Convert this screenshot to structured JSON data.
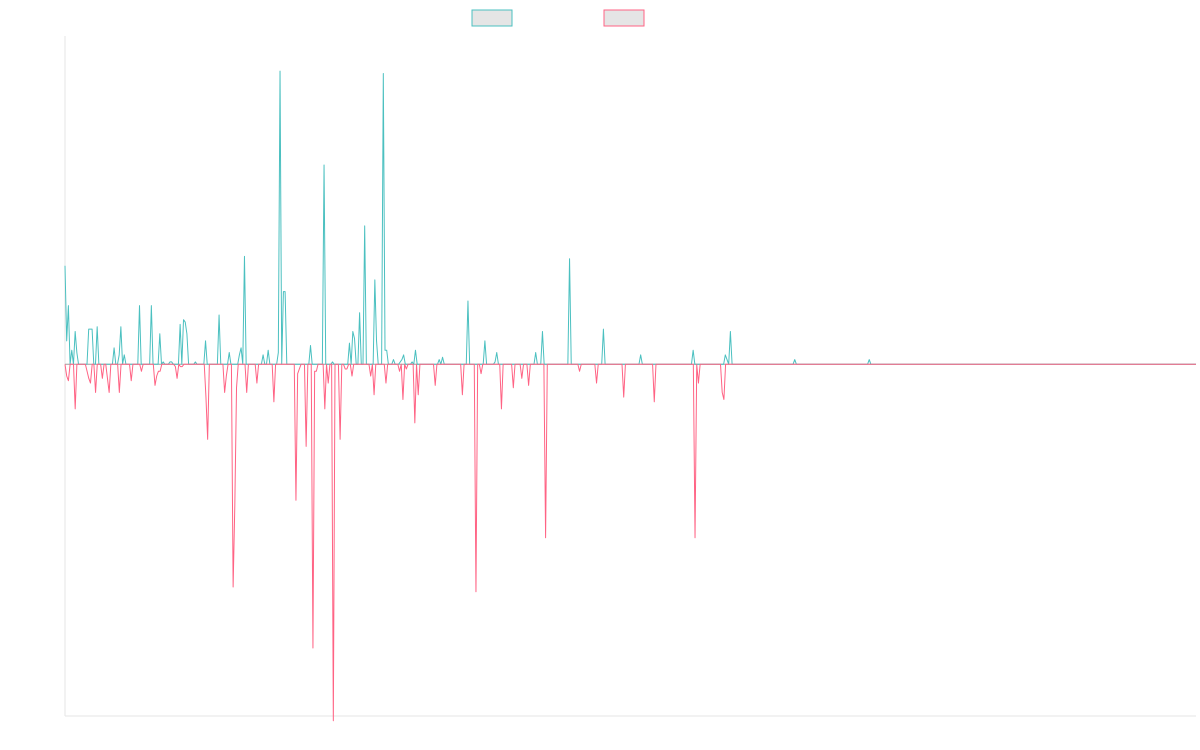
{
  "chart_data": {
    "type": "line",
    "title": "",
    "xlabel": "",
    "ylabel": "",
    "ylim": [
      -150,
      140
    ],
    "grid": false,
    "legend_position": "top-center",
    "colors": {
      "positive": "#4bc0c0",
      "negative": "#ff6384",
      "legend_fill": "#e5e5e5",
      "axis": "#e6e6e6",
      "baseline": "#9e9e9e"
    },
    "series": [
      {
        "values": [
          42,
          10,
          25,
          0,
          6,
          0,
          14,
          5,
          0,
          0,
          0,
          0,
          0,
          0,
          15,
          15,
          15,
          0,
          0,
          16,
          0,
          0,
          0,
          0,
          0,
          0,
          0,
          0,
          0,
          7,
          0,
          0,
          4,
          16,
          0,
          4,
          0,
          0,
          0,
          0,
          0,
          0,
          0,
          0,
          25,
          0,
          0,
          0,
          0,
          0,
          0,
          25,
          0,
          0,
          0,
          0,
          13,
          0,
          1,
          0,
          0,
          0,
          1,
          1,
          0,
          0,
          0,
          0,
          17,
          0,
          19,
          18,
          13,
          0,
          0,
          0,
          0,
          1,
          0,
          0,
          0,
          0,
          0,
          10,
          0,
          0,
          0,
          0,
          0,
          0,
          0,
          21,
          0,
          0,
          0,
          0,
          0,
          5,
          0,
          0,
          0,
          0,
          0,
          4,
          7,
          0,
          46,
          0,
          0,
          0,
          0,
          0,
          0,
          0,
          0,
          0,
          0,
          4,
          0,
          0,
          6,
          0,
          0,
          0,
          0,
          0,
          5,
          125,
          0,
          31,
          31,
          0,
          0,
          0,
          0,
          0,
          0,
          0,
          0,
          0,
          0,
          0,
          0,
          0,
          0,
          8,
          0,
          0,
          0,
          0,
          0,
          0,
          0,
          85,
          0,
          0,
          0,
          0,
          1,
          0,
          0,
          0,
          0,
          0,
          0,
          0,
          0,
          0,
          9,
          0,
          14,
          11,
          0,
          0,
          22,
          0,
          0,
          59,
          0,
          0,
          0,
          0,
          0,
          36,
          10,
          0,
          0,
          0,
          124,
          6,
          6,
          0,
          0,
          0,
          2,
          0,
          0,
          0,
          1,
          2,
          4,
          0,
          0,
          0,
          0,
          1,
          0,
          6,
          0,
          0,
          0,
          0,
          0,
          0,
          0,
          0,
          0,
          0,
          0,
          0,
          0,
          2,
          0,
          3,
          0,
          0,
          0,
          0,
          0,
          0,
          0,
          0,
          0,
          0,
          0,
          0,
          0,
          0,
          27,
          0,
          0,
          0,
          0,
          0,
          0,
          0,
          0,
          0,
          10,
          0,
          0,
          0,
          0,
          0,
          1,
          5,
          0,
          0,
          0,
          0,
          0,
          0,
          0,
          0,
          0,
          0,
          0,
          0,
          0,
          0,
          0,
          0,
          0,
          0,
          0,
          0,
          0,
          0,
          5,
          0,
          0,
          0,
          14,
          0,
          0,
          0,
          0,
          0,
          0,
          0,
          0,
          0,
          0,
          0,
          0,
          0,
          0,
          0,
          45,
          0,
          0,
          0,
          0,
          0,
          0,
          0,
          0,
          0,
          0,
          0,
          0,
          0,
          0,
          0,
          0,
          0,
          0,
          0,
          15,
          0,
          0,
          0,
          0,
          0,
          0,
          0,
          0,
          0,
          0,
          0,
          0,
          0,
          0,
          0,
          0,
          0,
          0,
          0,
          0,
          0,
          4,
          0,
          0,
          0,
          0,
          0,
          0,
          0,
          0,
          0,
          0,
          0,
          0,
          0,
          0,
          0,
          0,
          0,
          0,
          0,
          0,
          0,
          0,
          0,
          0,
          0,
          0,
          0,
          0,
          0,
          0,
          6,
          0,
          0,
          0,
          0,
          0,
          0,
          0,
          0,
          0,
          0,
          0,
          0,
          0,
          0,
          0,
          0,
          0,
          0,
          4,
          2,
          0,
          14,
          0,
          0,
          0,
          0,
          0,
          0,
          0,
          0,
          0,
          0,
          0,
          0,
          0,
          0,
          0,
          0,
          0,
          0,
          0,
          0,
          0,
          0,
          0,
          0,
          0,
          0,
          0,
          0,
          0,
          0,
          0,
          0,
          0,
          0,
          0,
          0,
          0,
          2,
          0,
          0,
          0,
          0,
          0,
          0,
          0,
          0,
          0,
          0,
          0,
          0,
          0,
          0,
          0,
          0,
          0,
          0,
          0,
          0,
          0,
          0,
          0,
          0,
          0,
          0,
          0,
          0,
          0,
          0,
          0,
          0,
          0,
          0,
          0,
          0,
          0,
          0,
          0,
          0,
          0,
          0,
          0,
          2,
          0,
          0,
          0,
          0,
          0,
          0,
          0,
          0,
          0,
          0,
          0,
          0,
          0,
          0,
          0,
          0,
          0,
          0,
          0,
          0,
          0,
          0,
          0,
          0,
          0,
          0,
          0,
          0,
          0,
          0,
          0,
          0,
          0,
          0,
          0,
          0,
          0,
          0,
          0,
          0,
          0,
          0,
          0,
          0,
          0,
          0,
          0,
          0,
          0,
          0,
          0,
          0,
          0,
          0,
          0,
          0,
          0,
          0,
          0,
          0,
          0,
          0,
          0,
          0,
          0,
          0,
          0,
          0,
          0,
          0,
          0,
          0,
          0,
          0,
          0,
          0,
          0,
          0,
          0,
          0,
          0,
          0,
          0,
          0,
          0,
          0,
          0,
          0,
          0,
          0,
          0,
          0,
          0,
          0,
          0,
          0,
          0,
          0,
          0,
          0,
          0,
          0,
          0,
          0,
          0,
          0,
          0,
          0,
          0,
          0,
          0,
          0,
          0,
          0,
          0,
          0,
          0,
          0,
          0,
          0,
          0,
          0,
          0,
          0,
          0,
          0,
          0,
          0,
          0,
          0,
          0,
          0,
          0,
          0,
          0,
          0,
          0,
          0,
          0,
          0,
          0,
          0,
          0,
          0,
          0,
          0,
          0,
          0,
          0,
          0,
          0,
          0,
          0,
          0,
          0,
          0,
          0,
          0,
          0,
          0,
          0,
          0,
          0,
          0,
          0,
          0,
          0,
          0,
          0,
          0,
          0,
          0,
          0,
          0,
          0,
          0,
          0,
          0,
          0,
          0,
          0,
          0,
          0,
          0,
          0,
          0,
          0,
          0,
          0,
          0,
          0,
          0,
          0
        ]
      },
      {
        "values": [
          0,
          -5,
          -7,
          0,
          0,
          0,
          -19,
          0,
          0,
          0,
          0,
          0,
          0,
          -3,
          -6,
          -8,
          0,
          0,
          -12,
          0,
          0,
          0,
          -6,
          0,
          0,
          -6,
          -12,
          0,
          0,
          0,
          0,
          0,
          -12,
          0,
          0,
          0,
          0,
          0,
          0,
          -7,
          0,
          0,
          0,
          0,
          0,
          -3,
          0,
          0,
          0,
          0,
          0,
          0,
          0,
          -9,
          -5,
          -3,
          -3,
          0,
          0,
          0,
          0,
          0,
          0,
          0,
          0,
          -1,
          -6,
          0,
          -1,
          -1,
          0,
          0,
          0,
          0,
          0,
          0,
          0,
          0,
          0,
          0,
          0,
          0,
          0,
          -14,
          -32,
          0,
          0,
          0,
          0,
          0,
          0,
          0,
          0,
          0,
          -12,
          -5,
          0,
          0,
          0,
          -95,
          -60,
          -10,
          0,
          0,
          0,
          0,
          0,
          -12,
          0,
          0,
          0,
          0,
          0,
          -8,
          0,
          0,
          0,
          0,
          0,
          0,
          0,
          0,
          0,
          -16,
          0,
          0,
          0,
          0,
          0,
          0,
          0,
          0,
          0,
          0,
          0,
          0,
          -58,
          -4,
          -2,
          0,
          0,
          0,
          -35,
          0,
          0,
          0,
          -121,
          -3,
          -3,
          0,
          0,
          0,
          0,
          -19,
          0,
          -8,
          0,
          0,
          -152,
          0,
          0,
          0,
          -32,
          0,
          0,
          -2,
          -2,
          0,
          0,
          -5,
          0,
          0,
          0,
          0,
          0,
          0,
          0,
          0,
          0,
          0,
          -5,
          0,
          -13,
          0,
          0,
          0,
          0,
          0,
          0,
          -8,
          0,
          0,
          0,
          0,
          0,
          0,
          0,
          -3,
          0,
          -15,
          0,
          -2,
          0,
          0,
          0,
          0,
          -25,
          0,
          -13,
          0,
          0,
          0,
          0,
          0,
          0,
          0,
          0,
          0,
          -9,
          0,
          0,
          0,
          0,
          0,
          0,
          0,
          0,
          0,
          0,
          0,
          0,
          0,
          0,
          0,
          -13,
          0,
          0,
          0,
          0,
          0,
          0,
          0,
          -97,
          0,
          0,
          -4,
          0,
          0,
          0,
          0,
          0,
          0,
          0,
          0,
          0,
          0,
          0,
          -19,
          0,
          0,
          0,
          0,
          0,
          0,
          -10,
          0,
          0,
          0,
          0,
          -6,
          0,
          0,
          0,
          -9,
          0,
          0,
          0,
          0,
          0,
          0,
          0,
          0,
          0,
          -74,
          0,
          0,
          0,
          0,
          0,
          0,
          0,
          0,
          0,
          0,
          0,
          0,
          0,
          0,
          0,
          0,
          0,
          0,
          0,
          -3,
          0,
          0,
          0,
          0,
          0,
          0,
          0,
          0,
          0,
          -8,
          0,
          0,
          0,
          0,
          0,
          0,
          0,
          0,
          0,
          0,
          0,
          0,
          0,
          0,
          0,
          -14,
          0,
          0,
          0,
          0,
          0,
          0,
          0,
          0,
          0,
          0,
          0,
          0,
          0,
          0,
          0,
          0,
          0,
          -16,
          0,
          0,
          0,
          0,
          0,
          0,
          0,
          0,
          0,
          0,
          0,
          0,
          0,
          0,
          0,
          0,
          0,
          0,
          0,
          0,
          0,
          0,
          0,
          -74,
          0,
          -8,
          0,
          0,
          0,
          0,
          0,
          0,
          0,
          0,
          0,
          0,
          0,
          0,
          0,
          -12,
          -15,
          0,
          0,
          0,
          0,
          0,
          0,
          0,
          0,
          0,
          0,
          0,
          0,
          0,
          0,
          0,
          0,
          0,
          0,
          0,
          0,
          0,
          0,
          0,
          0,
          0,
          0,
          0,
          0,
          0,
          0,
          0,
          0,
          0,
          0,
          0,
          0,
          0,
          0,
          0,
          0,
          0,
          0,
          0,
          0,
          0,
          0,
          0,
          0,
          0,
          0,
          0,
          0,
          0,
          0,
          0,
          0,
          0,
          0,
          0,
          0,
          0,
          0,
          0,
          0,
          0,
          0,
          0,
          0,
          0,
          0,
          0,
          0,
          0,
          0,
          0,
          0,
          0,
          0,
          0,
          0,
          0,
          0,
          0,
          0,
          0,
          0,
          0,
          0,
          0,
          0,
          0,
          0,
          0,
          0,
          0,
          0,
          0,
          0,
          0,
          0,
          0,
          0,
          0,
          0,
          0,
          0,
          0,
          0,
          0,
          0,
          0,
          0,
          0,
          0,
          0,
          0,
          0,
          0,
          0,
          0,
          0,
          0,
          0,
          0,
          0,
          0,
          0,
          0,
          0,
          0,
          0,
          0,
          0,
          0,
          0,
          0,
          0,
          0,
          0,
          0,
          0,
          0,
          0,
          0,
          0,
          0,
          0,
          0,
          0,
          0,
          0,
          0,
          0,
          0,
          0,
          0,
          0,
          0,
          0,
          0,
          0,
          0,
          0,
          0,
          0,
          0,
          0,
          0,
          0,
          0,
          0,
          0,
          0,
          0,
          0,
          0,
          0,
          0,
          0,
          0,
          0,
          0,
          0,
          0,
          0,
          0,
          0,
          0,
          0,
          0,
          0,
          0,
          0,
          0,
          0,
          0,
          0,
          0,
          0,
          0,
          0,
          0,
          0,
          0,
          0,
          0,
          0,
          0,
          0,
          0,
          0,
          0,
          0,
          0,
          0,
          0,
          0,
          0,
          0,
          0,
          0,
          0,
          0,
          0,
          0,
          0,
          0,
          0,
          0,
          0,
          0,
          0,
          0,
          0,
          0,
          0,
          0,
          0,
          0,
          0,
          0,
          0,
          0,
          0,
          0,
          0,
          0,
          0,
          0,
          0,
          0,
          0,
          0,
          0,
          0,
          0,
          0,
          0,
          0,
          0,
          0,
          0,
          0,
          0,
          0,
          0,
          0,
          0,
          0,
          0,
          0,
          0,
          0,
          0,
          0,
          0,
          0,
          0
        ]
      }
    ]
  },
  "legend": {
    "items": [
      {
        "label": ""
      },
      {
        "label": ""
      }
    ]
  }
}
